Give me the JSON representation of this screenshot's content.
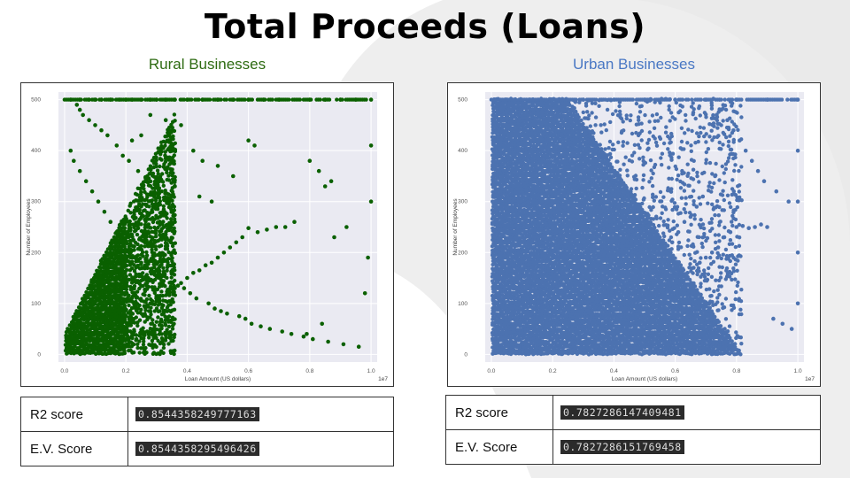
{
  "page": {
    "title": "Total Proceeds (Loans)",
    "colors": {
      "background_shape": "#eeeeee",
      "plot_bg": "#eaeaf2"
    }
  },
  "panels": [
    {
      "subtitle": "Rural Businesses",
      "color": "#2e6b12",
      "point_color": "#0a6000",
      "score_rows": [
        {
          "label": "R2 score",
          "value": "0.8544358249777163"
        },
        {
          "label": "E.V. Score",
          "value": "0.8544358295496426"
        }
      ]
    },
    {
      "subtitle": "Urban Businesses",
      "color": "#4a78c4",
      "point_color": "#4c72b0",
      "score_rows": [
        {
          "label": "R2 score",
          "value": "0.7827286147409481"
        },
        {
          "label": "E.V. Score",
          "value": "0.7827286151769458"
        }
      ]
    }
  ],
  "chart_data": [
    {
      "type": "scatter",
      "title": "",
      "xlabel": "Loan Amount (US dollars)",
      "ylabel": "Number of Employees",
      "x_scale_label": "1e7",
      "xlim": [
        -0.02,
        1.02
      ],
      "ylim": [
        -15,
        515
      ],
      "xticks": [
        "0.0",
        "0.2",
        "0.4",
        "0.6",
        "0.8",
        "1.0"
      ],
      "yticks": [
        "0",
        "100",
        "200",
        "300",
        "400",
        "500"
      ],
      "grid": true,
      "series": [
        {
          "values_note": "",
          "x": [
            0.02,
            0.05,
            0.08,
            0.1,
            0.12,
            0.15,
            0.18,
            0.2,
            0.22,
            0.25,
            0.28,
            0.3,
            0.33,
            0.36,
            0.4,
            0.45,
            0.5,
            0.55,
            0.6,
            0.65,
            0.7,
            0.8,
            0.85,
            0.9,
            0.95,
            1.0,
            1.0,
            1.0,
            0.99,
            0.98,
            0.92,
            0.88,
            0.84,
            0.79,
            0.75,
            0.72,
            0.69,
            0.66,
            0.63,
            0.6,
            0.58,
            0.56,
            0.54,
            0.52,
            0.5,
            0.48,
            0.46,
            0.44,
            0.42,
            0.4,
            0.38,
            0.36,
            0.34,
            0.32,
            0.3,
            0.28,
            0.26,
            0.24,
            0.22,
            0.2,
            0.18,
            0.16,
            0.14,
            0.12,
            0.1,
            0.08,
            0.06,
            0.04,
            0.03,
            0.02,
            0.01,
            0.01,
            0.02,
            0.03,
            0.05,
            0.07,
            0.09,
            0.11,
            0.13,
            0.15,
            0.17,
            0.19,
            0.21,
            0.23,
            0.25,
            0.27,
            0.29,
            0.31,
            0.35,
            0.37,
            0.39,
            0.41,
            0.43,
            0.47,
            0.49,
            0.51,
            0.53,
            0.57,
            0.59,
            0.61,
            0.64,
            0.67,
            0.71,
            0.74,
            0.78,
            0.81,
            0.86,
            0.91,
            0.96,
            0.8,
            0.83,
            0.87,
            0.85,
            0.6,
            0.62,
            0.45,
            0.5,
            0.55,
            0.42,
            0.38,
            0.33,
            0.28,
            0.25,
            0.22,
            0.48,
            0.44,
            0.36,
            0.31,
            0.27,
            0.24,
            0.21,
            0.19,
            0.17,
            0.14,
            0.12,
            0.1,
            0.08,
            0.06,
            0.05,
            0.04
          ],
          "y": [
            500,
            500,
            500,
            500,
            500,
            500,
            500,
            500,
            500,
            500,
            500,
            500,
            500,
            500,
            500,
            500,
            500,
            500,
            500,
            500,
            500,
            500,
            500,
            500,
            500,
            500,
            410,
            300,
            190,
            120,
            250,
            230,
            60,
            40,
            260,
            250,
            250,
            245,
            240,
            248,
            230,
            220,
            210,
            200,
            190,
            180,
            175,
            165,
            160,
            150,
            140,
            130,
            120,
            115,
            110,
            100,
            95,
            90,
            80,
            75,
            70,
            60,
            55,
            50,
            45,
            40,
            35,
            30,
            25,
            20,
            15,
            5,
            400,
            380,
            360,
            340,
            320,
            300,
            280,
            260,
            240,
            220,
            200,
            190,
            180,
            170,
            160,
            150,
            140,
            135,
            130,
            120,
            110,
            100,
            90,
            85,
            80,
            75,
            70,
            60,
            55,
            50,
            45,
            40,
            35,
            30,
            25,
            20,
            15,
            380,
            360,
            340,
            330,
            420,
            410,
            380,
            370,
            350,
            400,
            450,
            460,
            470,
            430,
            420,
            300,
            310,
            330,
            340,
            350,
            360,
            380,
            390,
            410,
            430,
            440,
            450,
            460,
            470,
            480,
            490
          ]
        }
      ]
    },
    {
      "type": "scatter",
      "title": "",
      "xlabel": "Loan Amount (US dollars)",
      "ylabel": "Number of Employees",
      "x_scale_label": "1e7",
      "xlim": [
        -0.02,
        1.02
      ],
      "ylim": [
        -15,
        515
      ],
      "xticks": [
        "0.0",
        "0.2",
        "0.4",
        "0.6",
        "0.8",
        "1.0"
      ],
      "yticks": [
        "0",
        "100",
        "200",
        "300",
        "400",
        "500"
      ],
      "grid": true,
      "series": [
        {
          "values_note": "",
          "x": [
            0.02,
            0.1,
            0.2,
            0.3,
            0.4,
            0.5,
            0.6,
            0.7,
            0.8,
            0.9,
            1.0,
            1.0,
            1.0,
            1.0,
            1.0,
            0.98,
            0.95,
            0.92,
            0.9,
            0.88,
            0.86,
            0.84,
            0.82,
            0.8,
            0.78,
            0.76,
            0.74,
            0.72,
            0.7,
            0.68,
            0.66,
            0.64,
            0.62,
            0.6,
            0.58,
            0.56,
            0.54,
            0.52,
            0.5,
            0.48,
            0.46,
            0.44,
            0.42,
            0.4,
            0.38,
            0.36,
            0.34,
            0.32,
            0.3,
            0.28,
            0.26,
            0.24,
            0.22,
            0.2,
            0.18,
            0.16,
            0.14,
            0.12,
            0.1,
            0.08,
            0.06,
            0.04,
            0.97,
            0.93,
            0.89,
            0.87,
            0.85,
            0.83,
            0.81,
            0.79,
            0.77,
            0.75,
            0.73,
            0.71,
            0.69,
            0.67,
            0.65,
            0.63,
            0.61,
            0.59,
            0.57,
            0.55,
            0.53,
            0.51,
            0.49,
            0.47,
            0.45,
            0.43,
            0.41,
            0.39,
            0.37,
            0.35,
            0.33,
            0.31,
            0.29,
            0.27,
            0.25,
            0.23
          ],
          "y": [
            500,
            500,
            500,
            500,
            500,
            500,
            500,
            500,
            500,
            500,
            500,
            400,
            300,
            200,
            100,
            50,
            60,
            70,
            250,
            255,
            250,
            248,
            252,
            250,
            240,
            230,
            210,
            200,
            190,
            180,
            170,
            160,
            150,
            140,
            130,
            120,
            110,
            100,
            90,
            80,
            70,
            60,
            50,
            40,
            30,
            20,
            15,
            10,
            8,
            6,
            5,
            4,
            3,
            2,
            2,
            2,
            2,
            2,
            2,
            2,
            2,
            2,
            300,
            320,
            340,
            360,
            380,
            400,
            420,
            440,
            460,
            480,
            350,
            330,
            310,
            290,
            270,
            260,
            240,
            220,
            200,
            185,
            170,
            150,
            130,
            115,
            100,
            85,
            70,
            55,
            45,
            35,
            25,
            18,
            12,
            9,
            7,
            5
          ]
        }
      ]
    }
  ]
}
